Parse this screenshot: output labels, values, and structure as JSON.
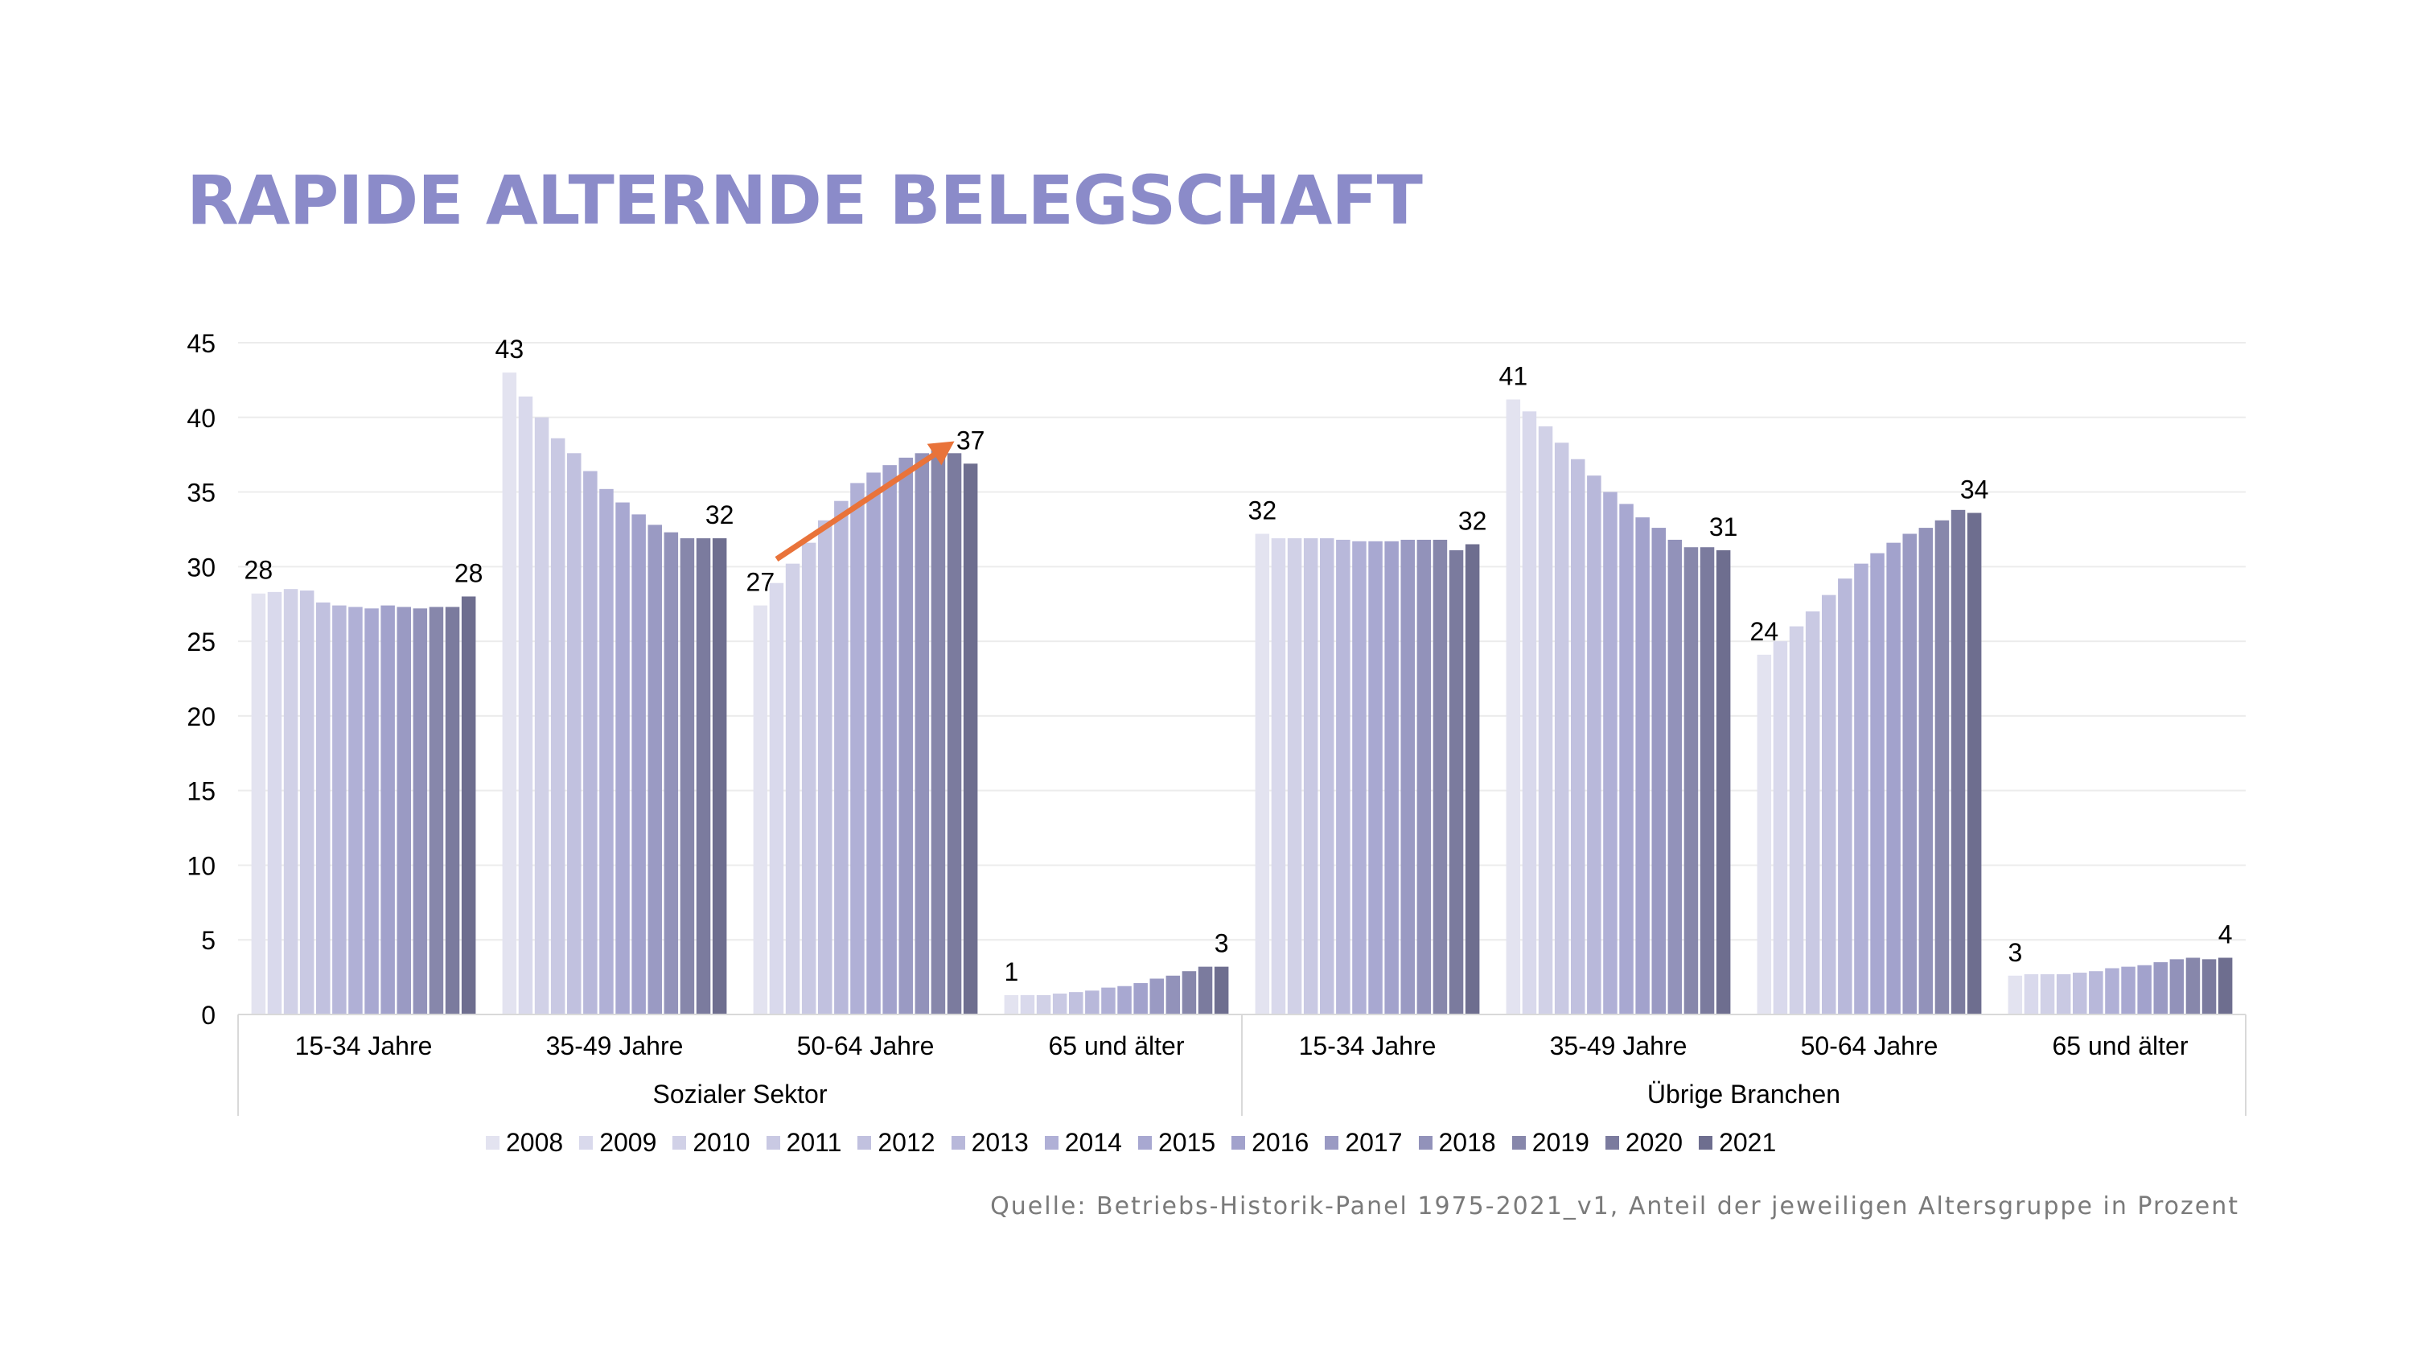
{
  "title": "RAPIDE ALTERNDE BELEGSCHAFT",
  "source": "Quelle: Betriebs-Historik-Panel 1975-2021_v1, Anteil der jeweiligen Altersgruppe in Prozent",
  "colors": {
    "title": "#8b8bc9",
    "arrow": "#e9733a",
    "series": [
      "#e3e3f0",
      "#d9d9ec",
      "#d1d1e7",
      "#c9c9e3",
      "#c1c1df",
      "#b8b8da",
      "#b0b0d6",
      "#a8a8d1",
      "#a2a2cc",
      "#9a9ac3",
      "#9292ba",
      "#8787ab",
      "#7b7b9e",
      "#6e6e8f"
    ]
  },
  "chart_data": {
    "type": "bar",
    "title": "RAPIDE ALTERNDE BELEGSCHAFT",
    "ylim": [
      0,
      45
    ],
    "yticks": [
      0,
      5,
      10,
      15,
      20,
      25,
      30,
      35,
      40,
      45
    ],
    "grid": true,
    "legend_position": "bottom",
    "groups": [
      {
        "label": "Sozialer Sektor",
        "categories": [
          "15-34 Jahre",
          "35-49 Jahre",
          "50-64 Jahre",
          "65 und älter"
        ]
      },
      {
        "label": "Übrige Branchen",
        "categories": [
          "15-34 Jahre",
          "35-49 Jahre",
          "50-64 Jahre",
          "65 und älter"
        ]
      }
    ],
    "series": [
      {
        "name": "2008",
        "values": [
          28.2,
          43.0,
          27.4,
          1.3,
          32.2,
          41.2,
          24.1,
          2.6
        ]
      },
      {
        "name": "2009",
        "values": [
          28.3,
          41.4,
          28.9,
          1.3,
          31.9,
          40.4,
          25.0,
          2.7
        ]
      },
      {
        "name": "2010",
        "values": [
          28.5,
          40.0,
          30.2,
          1.3,
          31.9,
          39.4,
          26.0,
          2.7
        ]
      },
      {
        "name": "2011",
        "values": [
          28.4,
          38.6,
          31.6,
          1.4,
          31.9,
          38.3,
          27.0,
          2.7
        ]
      },
      {
        "name": "2012",
        "values": [
          27.6,
          37.6,
          33.1,
          1.5,
          31.9,
          37.2,
          28.1,
          2.8
        ]
      },
      {
        "name": "2013",
        "values": [
          27.4,
          36.4,
          34.4,
          1.6,
          31.8,
          36.1,
          29.2,
          2.9
        ]
      },
      {
        "name": "2014",
        "values": [
          27.3,
          35.2,
          35.6,
          1.8,
          31.7,
          35.0,
          30.2,
          3.1
        ]
      },
      {
        "name": "2015",
        "values": [
          27.2,
          34.3,
          36.3,
          1.9,
          31.7,
          34.2,
          30.9,
          3.2
        ]
      },
      {
        "name": "2016",
        "values": [
          27.4,
          33.5,
          36.8,
          2.1,
          31.7,
          33.3,
          31.6,
          3.3
        ]
      },
      {
        "name": "2017",
        "values": [
          27.3,
          32.8,
          37.3,
          2.4,
          31.8,
          32.6,
          32.2,
          3.5
        ]
      },
      {
        "name": "2018",
        "values": [
          27.2,
          32.3,
          37.6,
          2.6,
          31.8,
          31.8,
          32.6,
          3.7
        ]
      },
      {
        "name": "2019",
        "values": [
          27.3,
          31.9,
          38.0,
          2.9,
          31.8,
          31.3,
          33.1,
          3.8
        ]
      },
      {
        "name": "2020",
        "values": [
          27.3,
          31.9,
          37.6,
          3.2,
          31.1,
          31.3,
          33.8,
          3.7
        ]
      },
      {
        "name": "2021",
        "values": [
          28.0,
          31.9,
          36.9,
          3.2,
          31.5,
          31.1,
          33.6,
          3.8
        ]
      }
    ],
    "data_labels": [
      {
        "category_index": 0,
        "series_index": 0,
        "text": "28"
      },
      {
        "category_index": 0,
        "series_index": 13,
        "text": "28"
      },
      {
        "category_index": 1,
        "series_index": 0,
        "text": "43"
      },
      {
        "category_index": 1,
        "series_index": 13,
        "text": "32"
      },
      {
        "category_index": 2,
        "series_index": 0,
        "text": "27"
      },
      {
        "category_index": 2,
        "series_index": 13,
        "text": "37"
      },
      {
        "category_index": 3,
        "series_index": 0,
        "text": "1"
      },
      {
        "category_index": 3,
        "series_index": 13,
        "text": "3"
      },
      {
        "category_index": 4,
        "series_index": 0,
        "text": "32"
      },
      {
        "category_index": 4,
        "series_index": 13,
        "text": "32"
      },
      {
        "category_index": 5,
        "series_index": 0,
        "text": "41"
      },
      {
        "category_index": 5,
        "series_index": 13,
        "text": "31"
      },
      {
        "category_index": 6,
        "series_index": 0,
        "text": "24"
      },
      {
        "category_index": 6,
        "series_index": 13,
        "text": "34"
      },
      {
        "category_index": 7,
        "series_index": 0,
        "text": "3"
      },
      {
        "category_index": 7,
        "series_index": 13,
        "text": "4"
      }
    ],
    "annotations": [
      {
        "type": "trend-arrow",
        "category_index": 2,
        "from": {
          "series_index": 1,
          "value": 30.5
        },
        "to": {
          "series_index": 12,
          "value": 38.4
        }
      }
    ]
  }
}
